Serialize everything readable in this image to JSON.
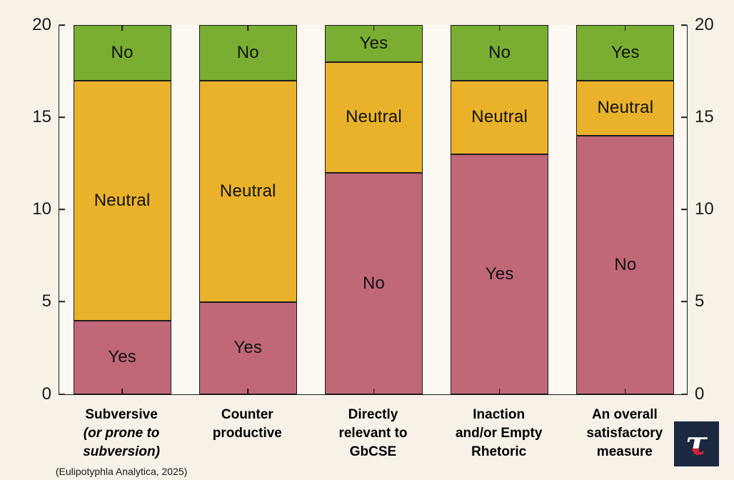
{
  "page": {
    "background": "#f8f1e8"
  },
  "logo": {
    "glyph": "τ",
    "background": "#1a2940",
    "glyph_color": "#ffffff",
    "tip_color": "#e8192c"
  },
  "chart_data": {
    "type": "bar",
    "stacked": true,
    "title": "",
    "xlabel": "",
    "ylabel": "",
    "ylim": [
      0,
      20
    ],
    "yticks": [
      0,
      5,
      10,
      15,
      20
    ],
    "y_axis_sides": [
      "left",
      "right"
    ],
    "grid": false,
    "legend": "none (labels inside segments)",
    "palette": {
      "bottom_segment": "#c06779",
      "middle_segment": "#e9b22a",
      "top_segment": "#79ae32",
      "segment_border": "#1c1c1c",
      "axis": "#1a1a1a",
      "plot_background": "#fdf9f2"
    },
    "categories": [
      "Subversive (or prone to subversion)",
      "Counter productive",
      "Directly relevant to GbCSE",
      "Inaction and/or Empty Rhetoric",
      "An overall satisfactory measure"
    ],
    "bars": [
      {
        "category_lines": [
          {
            "text": "Subversive",
            "italic": false
          },
          {
            "text": "(or prone to",
            "italic": true
          },
          {
            "text": "subversion)",
            "italic": true
          }
        ],
        "footnote": "(Eulipotyphla Analytica, 2025)",
        "segments": [
          {
            "label": "Yes",
            "value": 4,
            "color": "#c06779"
          },
          {
            "label": "Neutral",
            "value": 13,
            "color": "#e9b22a"
          },
          {
            "label": "No",
            "value": 3,
            "color": "#79ae32"
          }
        ]
      },
      {
        "category_lines": [
          {
            "text": "Counter",
            "italic": false
          },
          {
            "text": "productive",
            "italic": false
          }
        ],
        "segments": [
          {
            "label": "Yes",
            "value": 5,
            "color": "#c06779"
          },
          {
            "label": "Neutral",
            "value": 12,
            "color": "#e9b22a"
          },
          {
            "label": "No",
            "value": 3,
            "color": "#79ae32"
          }
        ]
      },
      {
        "category_lines": [
          {
            "text": "Directly",
            "italic": false
          },
          {
            "text": "relevant to",
            "italic": false
          },
          {
            "text": "GbCSE",
            "italic": false
          }
        ],
        "segments": [
          {
            "label": "No",
            "value": 12,
            "color": "#c06779"
          },
          {
            "label": "Neutral",
            "value": 6,
            "color": "#e9b22a"
          },
          {
            "label": "Yes",
            "value": 2,
            "color": "#79ae32"
          }
        ]
      },
      {
        "category_lines": [
          {
            "text": "Inaction",
            "italic": false
          },
          {
            "text": "and/or Empty",
            "italic": false
          },
          {
            "text": "Rhetoric",
            "italic": false
          }
        ],
        "segments": [
          {
            "label": "Yes",
            "value": 13,
            "color": "#c06779"
          },
          {
            "label": "Neutral",
            "value": 4,
            "color": "#e9b22a"
          },
          {
            "label": "No",
            "value": 3,
            "color": "#79ae32"
          }
        ]
      },
      {
        "category_lines": [
          {
            "text": "An overall",
            "italic": false
          },
          {
            "text": "satisfactory",
            "italic": false
          },
          {
            "text": "measure",
            "italic": false
          }
        ],
        "segments": [
          {
            "label": "No",
            "value": 14,
            "color": "#c06779"
          },
          {
            "label": "Neutral",
            "value": 3,
            "color": "#e9b22a"
          },
          {
            "label": "Yes",
            "value": 3,
            "color": "#79ae32"
          }
        ]
      }
    ]
  }
}
